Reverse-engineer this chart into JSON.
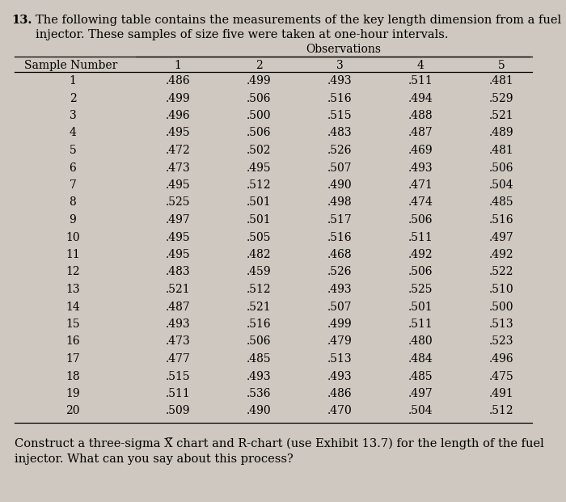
{
  "problem_number": "13.",
  "intro_line1": "The following table contains the measurements of the key length dimension from a fuel",
  "intro_line2": "injector. These samples of size five were taken at one-hour intervals.",
  "observations_label": "Observations",
  "col_headers": [
    "Sample Number",
    "1",
    "2",
    "3",
    "4",
    "5"
  ],
  "table_data": [
    [
      1,
      0.486,
      0.499,
      0.493,
      0.511,
      0.481
    ],
    [
      2,
      0.499,
      0.506,
      0.516,
      0.494,
      0.529
    ],
    [
      3,
      0.496,
      0.5,
      0.515,
      0.488,
      0.521
    ],
    [
      4,
      0.495,
      0.506,
      0.483,
      0.487,
      0.489
    ],
    [
      5,
      0.472,
      0.502,
      0.526,
      0.469,
      0.481
    ],
    [
      6,
      0.473,
      0.495,
      0.507,
      0.493,
      0.506
    ],
    [
      7,
      0.495,
      0.512,
      0.49,
      0.471,
      0.504
    ],
    [
      8,
      0.525,
      0.501,
      0.498,
      0.474,
      0.485
    ],
    [
      9,
      0.497,
      0.501,
      0.517,
      0.506,
      0.516
    ],
    [
      10,
      0.495,
      0.505,
      0.516,
      0.511,
      0.497
    ],
    [
      11,
      0.495,
      0.482,
      0.468,
      0.492,
      0.492
    ],
    [
      12,
      0.483,
      0.459,
      0.526,
      0.506,
      0.522
    ],
    [
      13,
      0.521,
      0.512,
      0.493,
      0.525,
      0.51
    ],
    [
      14,
      0.487,
      0.521,
      0.507,
      0.501,
      0.5
    ],
    [
      15,
      0.493,
      0.516,
      0.499,
      0.511,
      0.513
    ],
    [
      16,
      0.473,
      0.506,
      0.479,
      0.48,
      0.523
    ],
    [
      17,
      0.477,
      0.485,
      0.513,
      0.484,
      0.496
    ],
    [
      18,
      0.515,
      0.493,
      0.493,
      0.485,
      0.475
    ],
    [
      19,
      0.511,
      0.536,
      0.486,
      0.497,
      0.491
    ],
    [
      20,
      0.509,
      0.49,
      0.47,
      0.504,
      0.512
    ]
  ],
  "footer_line1": "Construct a three-sigma X̅ chart and R-chart (use Exhibit 13.7) for the length of the fuel",
  "footer_line2": "injector. What can you say about this process?",
  "bg_color": "#cfc8c0",
  "font_size_intro": 10.5,
  "font_size_header": 10.0,
  "font_size_data": 10.0,
  "font_size_footer": 10.5,
  "font_family": "serif"
}
